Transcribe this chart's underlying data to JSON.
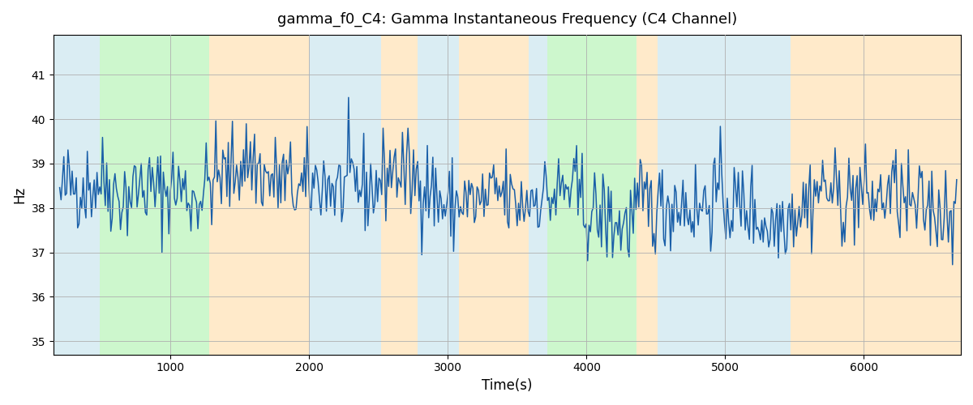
{
  "title": "gamma_f0_C4: Gamma Instantaneous Frequency (C4 Channel)",
  "xlabel": "Time(s)",
  "ylabel": "Hz",
  "xlim": [
    155,
    6700
  ],
  "ylim": [
    34.7,
    41.9
  ],
  "yticks": [
    35,
    36,
    37,
    38,
    39,
    40,
    41
  ],
  "xticks": [
    1000,
    2000,
    3000,
    4000,
    5000,
    6000
  ],
  "line_color": "#1a5fa8",
  "line_width": 1.1,
  "background_color": "#ffffff",
  "grid_color": "#b0b0b0",
  "regions": [
    {
      "xmin": 155,
      "xmax": 490,
      "color": "#add8e6",
      "alpha": 0.45
    },
    {
      "xmin": 490,
      "xmax": 1280,
      "color": "#90ee90",
      "alpha": 0.45
    },
    {
      "xmin": 1280,
      "xmax": 2000,
      "color": "#ffd9a0",
      "alpha": 0.55
    },
    {
      "xmin": 2000,
      "xmax": 2520,
      "color": "#add8e6",
      "alpha": 0.45
    },
    {
      "xmin": 2520,
      "xmax": 2780,
      "color": "#ffd9a0",
      "alpha": 0.55
    },
    {
      "xmin": 2780,
      "xmax": 3080,
      "color": "#add8e6",
      "alpha": 0.45
    },
    {
      "xmin": 3080,
      "xmax": 3580,
      "color": "#ffd9a0",
      "alpha": 0.55
    },
    {
      "xmin": 3580,
      "xmax": 3720,
      "color": "#add8e6",
      "alpha": 0.45
    },
    {
      "xmin": 3720,
      "xmax": 3810,
      "color": "#90ee90",
      "alpha": 0.45
    },
    {
      "xmin": 3810,
      "xmax": 4360,
      "color": "#90ee90",
      "alpha": 0.45
    },
    {
      "xmin": 4360,
      "xmax": 4510,
      "color": "#ffd9a0",
      "alpha": 0.55
    },
    {
      "xmin": 4510,
      "xmax": 5470,
      "color": "#add8e6",
      "alpha": 0.45
    },
    {
      "xmin": 5470,
      "xmax": 5720,
      "color": "#ffd9a0",
      "alpha": 0.55
    },
    {
      "xmin": 5720,
      "xmax": 6700,
      "color": "#ffd9a0",
      "alpha": 0.55
    }
  ],
  "seed": 42,
  "n_points": 650,
  "x_start": 200,
  "x_end": 6670,
  "base_freq": 38.2
}
